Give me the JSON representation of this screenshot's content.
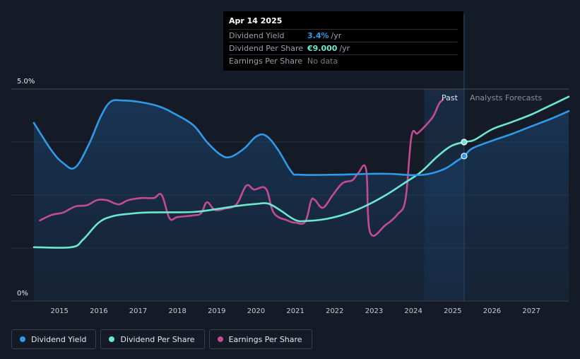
{
  "tooltip": {
    "date": "Apr 14 2025",
    "rows": [
      {
        "label": "Dividend Yield",
        "value": "3.4%",
        "unit": "/yr",
        "color": "#2f9ae8"
      },
      {
        "label": "Dividend Per Share",
        "value": "€9.000",
        "unit": "/yr",
        "color": "#6de8d0"
      },
      {
        "label": "Earnings Per Share",
        "value": "No data",
        "unit": "",
        "color": "#8a8f97"
      }
    ]
  },
  "legend": [
    {
      "label": "Dividend Yield",
      "color": "#2f9ae8"
    },
    {
      "label": "Dividend Per Share",
      "color": "#6de8d0"
    },
    {
      "label": "Earnings Per Share",
      "color": "#c44b93"
    }
  ],
  "chart_data": {
    "type": "line",
    "y_tick_labels": [
      "5.0%",
      "0%"
    ],
    "ylim": [
      0,
      5.0
    ],
    "xlim": [
      2014.35,
      2027.95
    ],
    "x_ticks": [
      2015,
      2016,
      2017,
      2018,
      2019,
      2020,
      2021,
      2022,
      2023,
      2024,
      2025,
      2026,
      2027
    ],
    "past_label": "Past",
    "forecast_label": "Analysts Forecasts",
    "forecast_start": 2025.29,
    "shade_start": 2024.28,
    "grid": true,
    "series": [
      {
        "name": "Dividend Yield",
        "color": "#2f9ae8",
        "values_unit": "% yield",
        "points": [
          [
            2014.35,
            4.2
          ],
          [
            2014.8,
            3.55
          ],
          [
            2015.1,
            3.25
          ],
          [
            2015.4,
            3.15
          ],
          [
            2015.75,
            3.7
          ],
          [
            2016.05,
            4.35
          ],
          [
            2016.3,
            4.7
          ],
          [
            2016.6,
            4.73
          ],
          [
            2017.0,
            4.7
          ],
          [
            2017.5,
            4.6
          ],
          [
            2017.9,
            4.43
          ],
          [
            2018.4,
            4.15
          ],
          [
            2018.75,
            3.75
          ],
          [
            2019.1,
            3.45
          ],
          [
            2019.35,
            3.4
          ],
          [
            2019.7,
            3.6
          ],
          [
            2020.0,
            3.88
          ],
          [
            2020.25,
            3.9
          ],
          [
            2020.55,
            3.58
          ],
          [
            2020.9,
            3.05
          ],
          [
            2021.1,
            2.98
          ],
          [
            2022.0,
            2.98
          ],
          [
            2022.9,
            3.0
          ],
          [
            2023.4,
            3.0
          ],
          [
            2024.0,
            2.97
          ],
          [
            2024.4,
            3.0
          ],
          [
            2024.8,
            3.12
          ],
          [
            2025.1,
            3.3
          ],
          [
            2025.29,
            3.42
          ],
          [
            2025.5,
            3.6
          ],
          [
            2026.0,
            3.78
          ],
          [
            2026.5,
            3.94
          ],
          [
            2027.0,
            4.12
          ],
          [
            2027.5,
            4.3
          ],
          [
            2027.95,
            4.48
          ]
        ]
      },
      {
        "name": "Dividend Per Share",
        "color": "#6de8d0",
        "values_unit": "% scale (plotted)",
        "points": [
          [
            2014.35,
            1.27
          ],
          [
            2015.3,
            1.27
          ],
          [
            2015.6,
            1.45
          ],
          [
            2016.0,
            1.85
          ],
          [
            2016.35,
            2.0
          ],
          [
            2016.8,
            2.06
          ],
          [
            2017.3,
            2.09
          ],
          [
            2018.4,
            2.1
          ],
          [
            2019.0,
            2.17
          ],
          [
            2019.5,
            2.24
          ],
          [
            2020.0,
            2.29
          ],
          [
            2020.3,
            2.3
          ],
          [
            2020.6,
            2.15
          ],
          [
            2021.0,
            1.91
          ],
          [
            2021.3,
            1.89
          ],
          [
            2021.8,
            1.94
          ],
          [
            2022.3,
            2.06
          ],
          [
            2022.8,
            2.25
          ],
          [
            2023.3,
            2.5
          ],
          [
            2023.8,
            2.8
          ],
          [
            2024.2,
            3.05
          ],
          [
            2024.6,
            3.4
          ],
          [
            2024.95,
            3.65
          ],
          [
            2025.29,
            3.75
          ],
          [
            2025.55,
            3.8
          ],
          [
            2026.0,
            4.05
          ],
          [
            2026.5,
            4.22
          ],
          [
            2027.0,
            4.4
          ],
          [
            2027.5,
            4.62
          ],
          [
            2027.95,
            4.82
          ]
        ]
      },
      {
        "name": "Earnings Per Share",
        "color": "#c44b93",
        "values_unit": "% scale (plotted)",
        "points": [
          [
            2014.5,
            1.9
          ],
          [
            2014.8,
            2.03
          ],
          [
            2015.1,
            2.09
          ],
          [
            2015.4,
            2.23
          ],
          [
            2015.7,
            2.26
          ],
          [
            2015.95,
            2.38
          ],
          [
            2016.2,
            2.38
          ],
          [
            2016.5,
            2.28
          ],
          [
            2016.75,
            2.38
          ],
          [
            2017.1,
            2.43
          ],
          [
            2017.4,
            2.43
          ],
          [
            2017.6,
            2.5
          ],
          [
            2017.8,
            1.95
          ],
          [
            2018.0,
            1.98
          ],
          [
            2018.4,
            2.02
          ],
          [
            2018.6,
            2.07
          ],
          [
            2018.75,
            2.33
          ],
          [
            2018.95,
            2.15
          ],
          [
            2019.2,
            2.18
          ],
          [
            2019.5,
            2.28
          ],
          [
            2019.75,
            2.72
          ],
          [
            2019.95,
            2.63
          ],
          [
            2020.25,
            2.65
          ],
          [
            2020.45,
            2.08
          ],
          [
            2020.8,
            1.9
          ],
          [
            2021.0,
            1.85
          ],
          [
            2021.25,
            1.87
          ],
          [
            2021.4,
            2.37
          ],
          [
            2021.5,
            2.38
          ],
          [
            2021.7,
            2.2
          ],
          [
            2021.95,
            2.5
          ],
          [
            2022.2,
            2.78
          ],
          [
            2022.45,
            2.85
          ],
          [
            2022.6,
            3.02
          ],
          [
            2022.8,
            3.1
          ],
          [
            2022.9,
            1.62
          ],
          [
            2023.3,
            1.8
          ],
          [
            2023.6,
            2.05
          ],
          [
            2023.8,
            2.4
          ],
          [
            2023.95,
            3.88
          ],
          [
            2024.1,
            3.95
          ],
          [
            2024.25,
            4.08
          ],
          [
            2024.5,
            4.35
          ],
          [
            2024.65,
            4.65
          ],
          [
            2024.75,
            4.75
          ]
        ]
      }
    ],
    "markers": [
      {
        "series": "Dividend Yield",
        "x": 2025.29,
        "y": 3.42
      },
      {
        "series": "Dividend Per Share",
        "x": 2025.29,
        "y": 3.75
      }
    ]
  }
}
